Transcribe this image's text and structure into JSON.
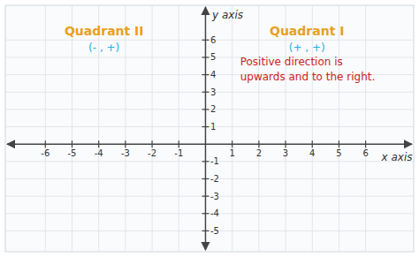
{
  "chart_data": {
    "type": "coordinate_plane",
    "xlim": [
      -7.5,
      7.8
    ],
    "ylim": [
      -6.2,
      8.0
    ],
    "xticks": [
      -6,
      -5,
      -4,
      -3,
      -2,
      -1,
      1,
      2,
      3,
      4,
      5,
      6
    ],
    "yticks": [
      -5,
      -4,
      -3,
      -2,
      -1,
      1,
      2,
      3,
      4,
      5,
      6
    ],
    "grid": true,
    "x_label": "x axis",
    "y_label": "y axis",
    "annotations": [
      {
        "text": "Quadrant II",
        "color": "#e8a020"
      },
      {
        "text": "(- , +)",
        "color": "#1ab0e8"
      },
      {
        "text": "Quadrant I",
        "color": "#e8a020"
      },
      {
        "text": "(+ , +)",
        "color": "#1ab0e8"
      },
      {
        "text": "Positive direction is",
        "color": "#cc2222"
      },
      {
        "text": "upwards and to the right.",
        "color": "#cc2222"
      }
    ]
  }
}
